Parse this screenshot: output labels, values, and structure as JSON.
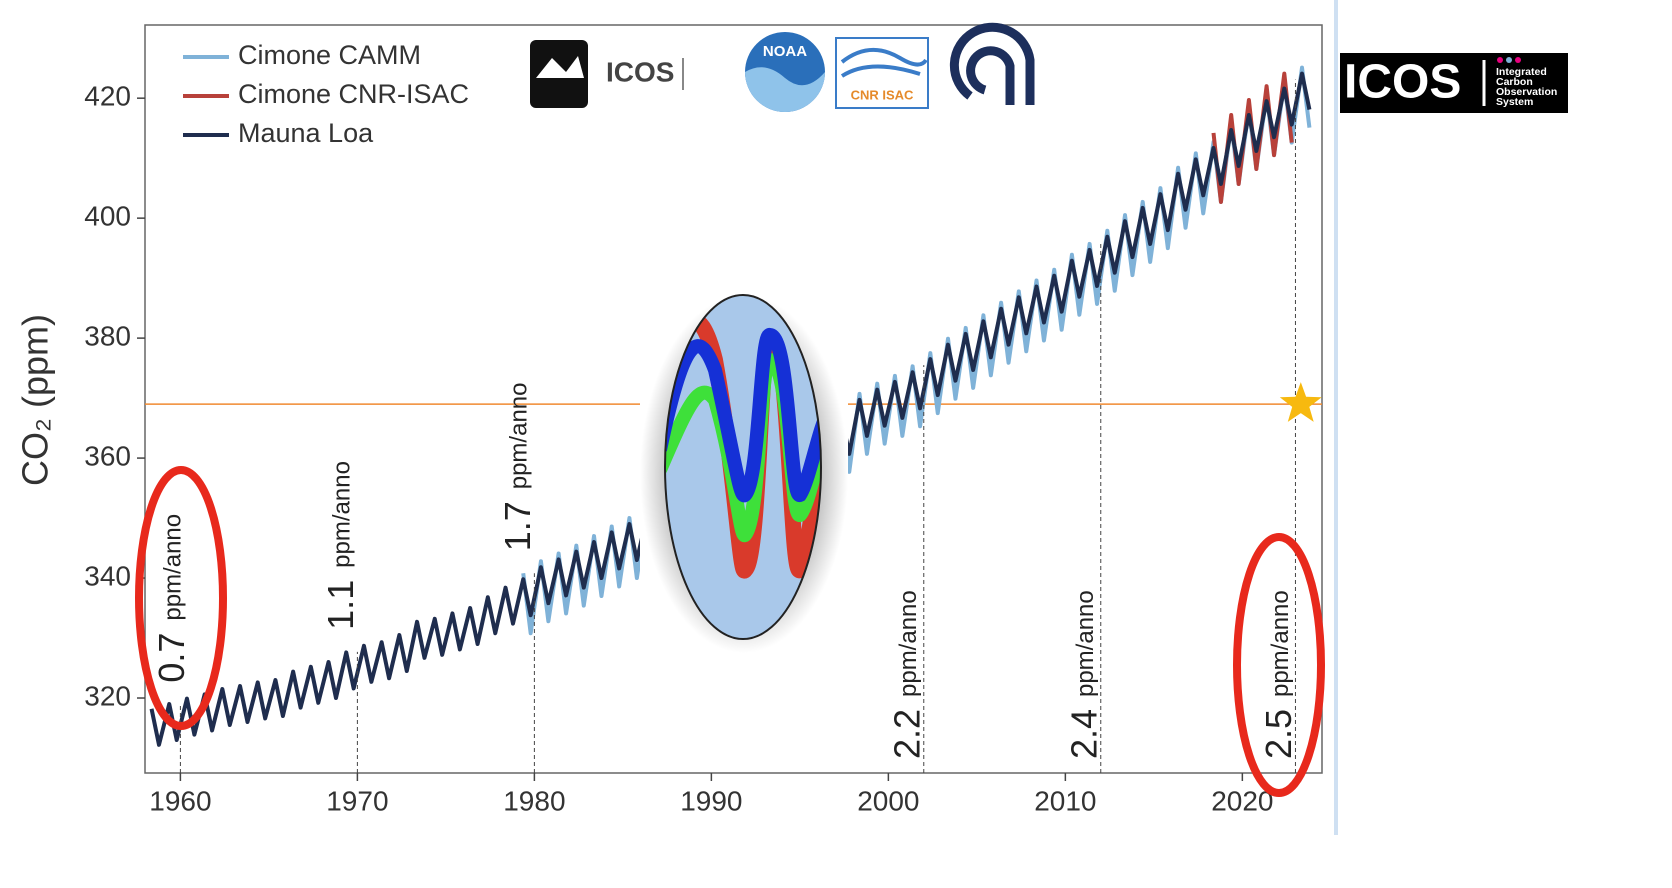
{
  "chart_data": {
    "type": "line",
    "ylabel": "CO₂ (ppm)",
    "xlim": [
      1958,
      2024.5
    ],
    "ylim": [
      307.5,
      432.2
    ],
    "xticks": [
      1960,
      1970,
      1980,
      1990,
      2000,
      2010,
      2020
    ],
    "yticks": [
      320,
      340,
      360,
      380,
      400,
      420
    ],
    "legend": "upper left",
    "grid": false,
    "series": [
      {
        "name": "Cimone CAMM",
        "color": "#7fb2d8",
        "x": [
          1979.37,
          1979.79,
          1980.37,
          1980.79,
          1981.37,
          1981.79,
          1982.37,
          1982.79,
          1983.37,
          1983.79,
          1984.37,
          1984.79,
          1985.37,
          1985.79,
          1986.37,
          1986.79,
          1987.37,
          1987.79,
          1988.37,
          1988.79,
          1989.37,
          1989.79,
          1990.37,
          1990.79,
          1991.37,
          1991.79,
          1992.37,
          1992.79,
          1993.37,
          1993.79,
          1994.37,
          1994.79,
          1995.37,
          1995.79,
          1996.37,
          1996.79,
          1997.37,
          1997.79,
          1998.37,
          1998.79,
          1999.37,
          1999.79,
          2000.37,
          2000.79,
          2001.37,
          2001.79,
          2002.37,
          2002.79,
          2003.37,
          2003.79,
          2004.37,
          2004.79,
          2005.37,
          2005.79,
          2006.37,
          2006.79,
          2007.37,
          2007.79,
          2008.37,
          2008.79,
          2009.37,
          2009.79,
          2010.37,
          2010.79,
          2011.37,
          2011.79,
          2012.37,
          2012.79,
          2013.37,
          2013.79,
          2014.37,
          2014.79,
          2015.37,
          2015.79,
          2016.37,
          2016.79,
          2017.37,
          2017.79,
          2018.37,
          2018.79,
          2019.37,
          2019.79,
          2020.37,
          2020.79,
          2021.37,
          2021.79,
          2022.37,
          2022.79,
          2023.37,
          2023.79
        ],
        "values": [
          340.8,
          330.8,
          342.8,
          332.8,
          344.1,
          334.1,
          345.4,
          335.4,
          347.0,
          337.0,
          348.6,
          338.6,
          350.0,
          340.0,
          351.4,
          341.4,
          353.2,
          343.2,
          355.6,
          345.6,
          357.1,
          347.1,
          358.4,
          348.4,
          359.6,
          349.6,
          360.4,
          350.4,
          361.1,
          351.1,
          362.8,
          352.8,
          364.8,
          354.8,
          366.6,
          356.6,
          367.7,
          357.7,
          370.7,
          360.7,
          372.4,
          362.4,
          373.7,
          363.7,
          375.3,
          365.3,
          377.5,
          367.5,
          379.9,
          369.9,
          381.7,
          371.7,
          383.8,
          373.8,
          385.9,
          375.9,
          387.8,
          377.8,
          389.6,
          379.6,
          391.4,
          381.4,
          393.9,
          383.9,
          395.7,
          385.7,
          397.9,
          387.9,
          400.5,
          390.5,
          402.7,
          392.7,
          405.0,
          395.0,
          408.4,
          398.4,
          410.8,
          400.8,
          412.7,
          402.7,
          415.7,
          405.7,
          418.2,
          408.2,
          420.5,
          410.5,
          422.6,
          412.6,
          425.1,
          415.1
        ]
      },
      {
        "name": "Cimone CNR-ISAC",
        "color": "#b8413a",
        "x": [
          2018.37,
          2018.79,
          2019.37,
          2019.79,
          2020.37,
          2020.79,
          2021.37,
          2021.79,
          2022.37,
          2022.79
        ],
        "values": [
          414.2,
          402.7,
          417.2,
          405.7,
          419.7,
          408.2,
          422.0,
          410.5,
          424.1,
          412.6
        ]
      },
      {
        "name": "Mauna Loa",
        "color": "#1f2d4e",
        "x": [
          1958.37,
          1958.79,
          1959.37,
          1959.79,
          1960.37,
          1960.79,
          1961.37,
          1961.79,
          1962.37,
          1962.79,
          1963.37,
          1963.79,
          1964.37,
          1964.79,
          1965.37,
          1965.79,
          1966.37,
          1966.79,
          1967.37,
          1967.79,
          1968.37,
          1968.79,
          1969.37,
          1969.79,
          1970.37,
          1970.79,
          1971.37,
          1971.79,
          1972.37,
          1972.79,
          1973.37,
          1973.79,
          1974.37,
          1974.79,
          1975.37,
          1975.79,
          1976.37,
          1976.79,
          1977.37,
          1977.79,
          1978.37,
          1978.79,
          1979.37,
          1979.79,
          1980.37,
          1980.79,
          1981.37,
          1981.79,
          1982.37,
          1982.79,
          1983.37,
          1983.79,
          1984.37,
          1984.79,
          1985.37,
          1985.79,
          1986.37,
          1986.79,
          1987.37,
          1987.79,
          1988.37,
          1988.79,
          1989.37,
          1989.79,
          1990.37,
          1990.79,
          1991.37,
          1991.79,
          1992.37,
          1992.79,
          1993.37,
          1993.79,
          1994.37,
          1994.79,
          1995.37,
          1995.79,
          1996.37,
          1996.79,
          1997.37,
          1997.79,
          1998.37,
          1998.79,
          1999.37,
          1999.79,
          2000.37,
          2000.79,
          2001.37,
          2001.79,
          2002.37,
          2002.79,
          2003.37,
          2003.79,
          2004.37,
          2004.79,
          2005.37,
          2005.79,
          2006.37,
          2006.79,
          2007.37,
          2007.79,
          2008.37,
          2008.79,
          2009.37,
          2009.79,
          2010.37,
          2010.79,
          2011.37,
          2011.79,
          2012.37,
          2012.79,
          2013.37,
          2013.79,
          2014.37,
          2014.79,
          2015.37,
          2015.79,
          2016.37,
          2016.79,
          2017.37,
          2017.79,
          2018.37,
          2018.79,
          2019.37,
          2019.79,
          2020.37,
          2020.79,
          2021.37,
          2021.79,
          2022.37,
          2022.79,
          2023.37,
          2023.79
        ],
        "values": [
          318.2,
          312.2,
          319.0,
          313.0,
          319.9,
          313.9,
          320.6,
          314.6,
          321.5,
          315.5,
          322.0,
          316.0,
          322.6,
          316.6,
          323.0,
          317.0,
          324.4,
          318.4,
          325.2,
          319.2,
          326.0,
          320.0,
          327.6,
          321.6,
          328.7,
          322.7,
          329.3,
          323.3,
          330.5,
          324.5,
          332.7,
          326.7,
          333.2,
          327.2,
          334.1,
          328.1,
          335.0,
          329.0,
          336.8,
          330.8,
          338.4,
          332.4,
          339.8,
          333.8,
          341.8,
          335.8,
          343.1,
          337.1,
          344.4,
          338.4,
          346.0,
          340.0,
          347.6,
          341.6,
          349.0,
          343.0,
          350.4,
          344.4,
          352.2,
          346.2,
          354.6,
          348.6,
          356.1,
          350.1,
          357.4,
          351.4,
          358.6,
          352.6,
          359.4,
          353.4,
          360.1,
          354.1,
          361.8,
          355.8,
          363.8,
          357.8,
          365.6,
          359.6,
          366.7,
          360.7,
          369.7,
          363.7,
          371.4,
          365.4,
          372.7,
          366.7,
          374.3,
          368.3,
          376.5,
          370.5,
          378.9,
          372.9,
          380.7,
          374.7,
          382.8,
          376.8,
          384.9,
          378.9,
          386.8,
          380.8,
          388.6,
          382.6,
          390.4,
          384.4,
          392.9,
          386.9,
          394.7,
          388.7,
          396.9,
          390.9,
          399.5,
          393.5,
          401.7,
          395.7,
          404.0,
          398.0,
          407.4,
          401.4,
          409.8,
          403.8,
          411.7,
          405.7,
          414.7,
          408.7,
          417.2,
          411.2,
          419.5,
          413.5,
          421.6,
          415.6,
          424.1,
          418.1
        ]
      }
    ],
    "annotations": [
      {
        "x": 1960,
        "rate": 0.7,
        "unit": "ppm/anno"
      },
      {
        "x": 1970,
        "rate": 1.1,
        "unit": "ppm/anno"
      },
      {
        "x": 1980,
        "rate": 1.7,
        "unit": "ppm/anno"
      },
      {
        "x": 2002,
        "rate": 2.2,
        "unit": "ppm/anno"
      },
      {
        "x": 2012,
        "rate": 2.4,
        "unit": "ppm/anno"
      },
      {
        "x": 2023,
        "rate": 2.5,
        "unit": "ppm/anno"
      }
    ],
    "reference_line": {
      "y": 369,
      "color": "#f08a30"
    },
    "star": {
      "x": 2023.3,
      "y": 369,
      "color": "#f7b90f"
    }
  },
  "logos": {
    "icos_small": "ICOS",
    "noaa": "NOAA",
    "cnr_isac": "CNR ISAC",
    "icos_main": {
      "name": "ICOS",
      "lines": [
        "Integrated",
        "Carbon",
        "Observation",
        "System"
      ]
    }
  }
}
